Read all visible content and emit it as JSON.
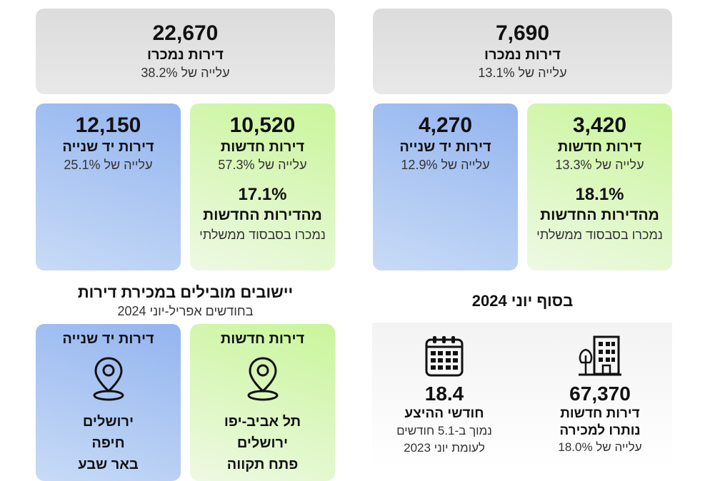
{
  "left": {
    "total": {
      "value": "22,670",
      "label": "דירות נמכרו",
      "change": "עלייה של 38.2%"
    },
    "new": {
      "value": "10,520",
      "label": "דירות חדשות",
      "change": "עלייה של 57.3%",
      "share_pct": "17.1%",
      "share_label": "מהדירות החדשות",
      "share_note": "נמכרו בסבסוד ממשלתי"
    },
    "second_hand": {
      "value": "12,150",
      "label": "דירות יד שנייה",
      "change": "עלייה של 25.1%"
    },
    "leading_title": "יישובים מובילים במכירת דירות",
    "leading_subtitle": "בחודשים אפריל-יוני 2024",
    "leading_new": {
      "title": "דירות חדשות",
      "icon": "location-pin-icon",
      "cities": [
        "תל אביב-יפו",
        "ירושלים",
        "פתח תקווה"
      ]
    },
    "leading_second_hand": {
      "title": "דירות יד שנייה",
      "icon": "location-pin-icon",
      "cities": [
        "ירושלים",
        "חיפה",
        "באר שבע"
      ]
    }
  },
  "right": {
    "total": {
      "value": "7,690",
      "label": "דירות נמכרו",
      "change": "עלייה של 13.1%"
    },
    "new": {
      "value": "3,420",
      "label": "דירות חדשות",
      "change": "עלייה של 13.3%",
      "share_pct": "18.1%",
      "share_label": "מהדירות החדשות",
      "share_note": "נמכרו בסבסוד ממשלתי"
    },
    "second_hand": {
      "value": "4,270",
      "label": "דירות יד שנייה",
      "change": "עלייה של 12.9%"
    },
    "end_title": "בסוף יוני 2024",
    "unsold": {
      "icon": "building-icon",
      "value": "67,370",
      "label1": "דירות חדשות",
      "label2": "נותרו למכירה",
      "change": "עלייה של 18.0%"
    },
    "supply": {
      "icon": "calendar-icon",
      "value": "18.4",
      "label": "חודשי ההיצע",
      "note1": "נמוך ב-5.1 חודשים",
      "note2": "לעומת יוני 2023"
    }
  }
}
